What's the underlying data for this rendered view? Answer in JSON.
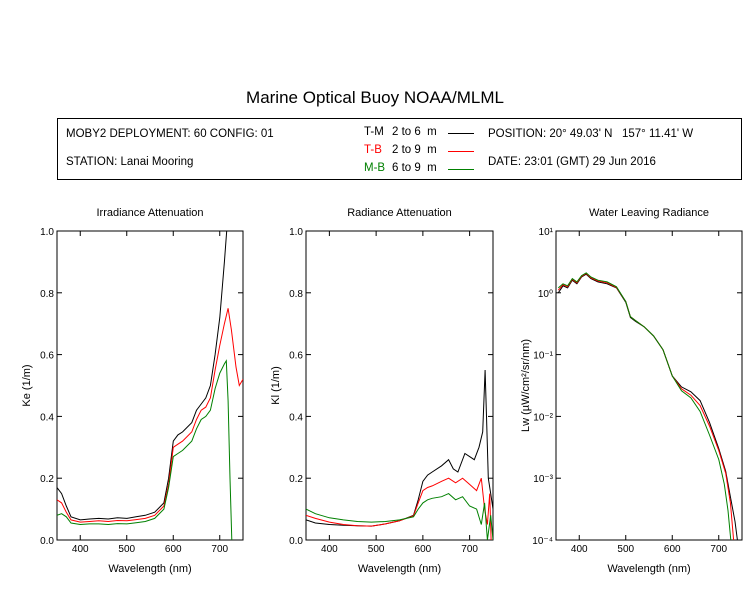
{
  "title": "Marine Optical Buoy NOAA/MLML",
  "info": {
    "deployment": "MOBY2 DEPLOYMENT: 60 CONFIG: 01",
    "station": "STATION: Lanai Mooring",
    "position": "POSITION: 20° 49.03' N   157° 11.41' W",
    "date": "DATE: 23:01 (GMT) 29 Jun 2016",
    "legend": [
      {
        "key": "T-M",
        "range": "2 to 6  m",
        "color": "#000000"
      },
      {
        "key": "T-B",
        "range": "2 to 9  m",
        "color": "#ff0000"
      },
      {
        "key": "M-B",
        "range": "6 to 9  m",
        "color": "#008000"
      }
    ]
  },
  "chart_data": [
    {
      "type": "line",
      "title": "Irradiance Attenuation",
      "xlabel": "Wavelength (nm)",
      "ylabel": "Ke  (1/m)",
      "xlim": [
        350,
        750
      ],
      "ylim": [
        0,
        1.0
      ],
      "xticks": [
        "400",
        "500",
        "600",
        "700"
      ],
      "yticks": [
        "0.0",
        "0.2",
        "0.4",
        "0.6",
        "0.8",
        "1.0"
      ],
      "series": [
        {
          "name": "T-M",
          "color": "#000000",
          "points": [
            [
              350,
              0.17
            ],
            [
              360,
              0.15
            ],
            [
              370,
              0.11
            ],
            [
              380,
              0.075
            ],
            [
              400,
              0.065
            ],
            [
              420,
              0.068
            ],
            [
              440,
              0.07
            ],
            [
              460,
              0.068
            ],
            [
              480,
              0.072
            ],
            [
              500,
              0.07
            ],
            [
              520,
              0.075
            ],
            [
              540,
              0.08
            ],
            [
              560,
              0.09
            ],
            [
              580,
              0.12
            ],
            [
              590,
              0.2
            ],
            [
              600,
              0.32
            ],
            [
              610,
              0.34
            ],
            [
              620,
              0.35
            ],
            [
              640,
              0.38
            ],
            [
              650,
              0.42
            ],
            [
              660,
              0.44
            ],
            [
              670,
              0.46
            ],
            [
              680,
              0.5
            ],
            [
              690,
              0.6
            ],
            [
              700,
              0.72
            ],
            [
              710,
              0.9
            ],
            [
              715,
              1.0
            ]
          ]
        },
        {
          "name": "T-B",
          "color": "#ff0000",
          "points": [
            [
              350,
              0.13
            ],
            [
              360,
              0.12
            ],
            [
              370,
              0.09
            ],
            [
              380,
              0.065
            ],
            [
              400,
              0.058
            ],
            [
              420,
              0.06
            ],
            [
              440,
              0.062
            ],
            [
              460,
              0.06
            ],
            [
              480,
              0.063
            ],
            [
              500,
              0.062
            ],
            [
              520,
              0.066
            ],
            [
              540,
              0.07
            ],
            [
              560,
              0.08
            ],
            [
              580,
              0.11
            ],
            [
              590,
              0.18
            ],
            [
              600,
              0.3
            ],
            [
              610,
              0.31
            ],
            [
              620,
              0.32
            ],
            [
              640,
              0.35
            ],
            [
              650,
              0.39
            ],
            [
              660,
              0.42
            ],
            [
              670,
              0.43
            ],
            [
              680,
              0.46
            ],
            [
              690,
              0.55
            ],
            [
              700,
              0.63
            ],
            [
              710,
              0.7
            ],
            [
              718,
              0.75
            ],
            [
              725,
              0.68
            ],
            [
              735,
              0.56
            ],
            [
              742,
              0.5
            ],
            [
              750,
              0.52
            ]
          ]
        },
        {
          "name": "M-B",
          "color": "#008000",
          "points": [
            [
              350,
              0.08
            ],
            [
              360,
              0.085
            ],
            [
              370,
              0.075
            ],
            [
              380,
              0.055
            ],
            [
              400,
              0.05
            ],
            [
              420,
              0.052
            ],
            [
              440,
              0.052
            ],
            [
              460,
              0.05
            ],
            [
              480,
              0.053
            ],
            [
              500,
              0.052
            ],
            [
              520,
              0.056
            ],
            [
              540,
              0.06
            ],
            [
              560,
              0.07
            ],
            [
              580,
              0.1
            ],
            [
              590,
              0.17
            ],
            [
              600,
              0.27
            ],
            [
              610,
              0.28
            ],
            [
              620,
              0.29
            ],
            [
              640,
              0.32
            ],
            [
              650,
              0.36
            ],
            [
              660,
              0.39
            ],
            [
              670,
              0.4
            ],
            [
              680,
              0.42
            ],
            [
              690,
              0.49
            ],
            [
              700,
              0.54
            ],
            [
              710,
              0.57
            ],
            [
              714,
              0.58
            ],
            [
              718,
              0.45
            ],
            [
              722,
              0.2
            ],
            [
              726,
              0.0
            ]
          ]
        }
      ]
    },
    {
      "type": "line",
      "title": "Radiance Attenuation",
      "xlabel": "Wavelength (nm)",
      "ylabel": "Kl  (1/m)",
      "xlim": [
        350,
        750
      ],
      "ylim": [
        0,
        1.0
      ],
      "xticks": [
        "400",
        "500",
        "600",
        "700"
      ],
      "yticks": [
        "0.0",
        "0.2",
        "0.4",
        "0.6",
        "0.8",
        "1.0"
      ],
      "series": [
        {
          "name": "T-M",
          "color": "#000000",
          "points": [
            [
              350,
              0.065
            ],
            [
              370,
              0.055
            ],
            [
              400,
              0.05
            ],
            [
              430,
              0.048
            ],
            [
              460,
              0.046
            ],
            [
              490,
              0.045
            ],
            [
              520,
              0.052
            ],
            [
              550,
              0.062
            ],
            [
              580,
              0.08
            ],
            [
              590,
              0.13
            ],
            [
              600,
              0.19
            ],
            [
              610,
              0.21
            ],
            [
              620,
              0.22
            ],
            [
              640,
              0.24
            ],
            [
              655,
              0.26
            ],
            [
              665,
              0.23
            ],
            [
              675,
              0.22
            ],
            [
              690,
              0.28
            ],
            [
              700,
              0.27
            ],
            [
              710,
              0.26
            ],
            [
              720,
              0.3
            ],
            [
              728,
              0.35
            ],
            [
              733,
              0.55
            ],
            [
              736,
              0.4
            ],
            [
              740,
              0.2
            ],
            [
              745,
              0.15
            ],
            [
              750,
              0.1
            ]
          ]
        },
        {
          "name": "T-B",
          "color": "#ff0000",
          "points": [
            [
              350,
              0.08
            ],
            [
              370,
              0.07
            ],
            [
              400,
              0.058
            ],
            [
              430,
              0.05
            ],
            [
              460,
              0.046
            ],
            [
              490,
              0.045
            ],
            [
              520,
              0.052
            ],
            [
              550,
              0.062
            ],
            [
              580,
              0.078
            ],
            [
              590,
              0.12
            ],
            [
              600,
              0.16
            ],
            [
              610,
              0.17
            ],
            [
              620,
              0.175
            ],
            [
              640,
              0.19
            ],
            [
              655,
              0.2
            ],
            [
              670,
              0.185
            ],
            [
              685,
              0.2
            ],
            [
              700,
              0.18
            ],
            [
              715,
              0.16
            ],
            [
              725,
              0.2
            ],
            [
              732,
              0.1
            ],
            [
              738,
              0.05
            ],
            [
              743,
              0.15
            ],
            [
              746,
              0.0
            ]
          ]
        },
        {
          "name": "M-B",
          "color": "#008000",
          "points": [
            [
              350,
              0.1
            ],
            [
              370,
              0.085
            ],
            [
              400,
              0.072
            ],
            [
              430,
              0.065
            ],
            [
              460,
              0.06
            ],
            [
              490,
              0.058
            ],
            [
              520,
              0.06
            ],
            [
              550,
              0.065
            ],
            [
              580,
              0.075
            ],
            [
              590,
              0.1
            ],
            [
              600,
              0.12
            ],
            [
              610,
              0.13
            ],
            [
              620,
              0.135
            ],
            [
              640,
              0.14
            ],
            [
              655,
              0.15
            ],
            [
              670,
              0.13
            ],
            [
              685,
              0.14
            ],
            [
              700,
              0.11
            ],
            [
              715,
              0.1
            ],
            [
              725,
              0.05
            ],
            [
              732,
              0.12
            ],
            [
              738,
              0.0
            ],
            [
              745,
              0.08
            ],
            [
              750,
              0.0
            ]
          ]
        }
      ]
    },
    {
      "type": "line",
      "title": "Water Leaving Radiance",
      "xlabel": "Wavelength (nm)",
      "ylabel": "Lw  (µW/cm²/sr/nm)",
      "xlim": [
        350,
        750
      ],
      "ylim": [
        0.0001,
        10
      ],
      "yscale": "log",
      "xticks": [
        "400",
        "500",
        "600",
        "700"
      ],
      "yticks": [
        "10⁻⁴",
        "10⁻³",
        "10⁻²",
        "10⁻¹",
        "10⁰",
        "10¹"
      ],
      "series": [
        {
          "name": "T-M",
          "color": "#000000",
          "points": [
            [
              355,
              1.0
            ],
            [
              365,
              1.3
            ],
            [
              375,
              1.2
            ],
            [
              385,
              1.6
            ],
            [
              395,
              1.4
            ],
            [
              405,
              1.8
            ],
            [
              415,
              2.0
            ],
            [
              425,
              1.7
            ],
            [
              440,
              1.5
            ],
            [
              460,
              1.4
            ],
            [
              480,
              1.2
            ],
            [
              500,
              0.7
            ],
            [
              510,
              0.4
            ],
            [
              520,
              0.35
            ],
            [
              540,
              0.28
            ],
            [
              560,
              0.2
            ],
            [
              580,
              0.12
            ],
            [
              600,
              0.045
            ],
            [
              620,
              0.03
            ],
            [
              640,
              0.025
            ],
            [
              660,
              0.018
            ],
            [
              680,
              0.008
            ],
            [
              700,
              0.003
            ],
            [
              715,
              0.0013
            ],
            [
              725,
              0.0005
            ],
            [
              735,
              0.0002
            ],
            [
              740,
              0.0001
            ]
          ]
        },
        {
          "name": "T-B",
          "color": "#ff0000",
          "points": [
            [
              355,
              1.1
            ],
            [
              365,
              1.35
            ],
            [
              375,
              1.25
            ],
            [
              385,
              1.65
            ],
            [
              395,
              1.45
            ],
            [
              405,
              1.85
            ],
            [
              415,
              2.05
            ],
            [
              425,
              1.75
            ],
            [
              440,
              1.55
            ],
            [
              460,
              1.45
            ],
            [
              480,
              1.22
            ],
            [
              500,
              0.72
            ],
            [
              510,
              0.41
            ],
            [
              520,
              0.36
            ],
            [
              540,
              0.28
            ],
            [
              560,
              0.2
            ],
            [
              580,
              0.12
            ],
            [
              600,
              0.045
            ],
            [
              620,
              0.028
            ],
            [
              640,
              0.022
            ],
            [
              660,
              0.015
            ],
            [
              680,
              0.007
            ],
            [
              700,
              0.0028
            ],
            [
              715,
              0.0012
            ],
            [
              725,
              0.0004
            ],
            [
              732,
              0.0001
            ]
          ]
        },
        {
          "name": "M-B",
          "color": "#008000",
          "points": [
            [
              355,
              1.2
            ],
            [
              365,
              1.4
            ],
            [
              375,
              1.3
            ],
            [
              385,
              1.7
            ],
            [
              395,
              1.5
            ],
            [
              405,
              1.9
            ],
            [
              415,
              2.1
            ],
            [
              425,
              1.8
            ],
            [
              440,
              1.6
            ],
            [
              460,
              1.5
            ],
            [
              480,
              1.25
            ],
            [
              500,
              0.72
            ],
            [
              510,
              0.41
            ],
            [
              520,
              0.36
            ],
            [
              540,
              0.28
            ],
            [
              560,
              0.2
            ],
            [
              580,
              0.12
            ],
            [
              600,
              0.045
            ],
            [
              620,
              0.026
            ],
            [
              640,
              0.02
            ],
            [
              660,
              0.012
            ],
            [
              680,
              0.005
            ],
            [
              700,
              0.002
            ],
            [
              712,
              0.0008
            ],
            [
              720,
              0.0003
            ],
            [
              726,
              0.0001
            ]
          ]
        }
      ]
    }
  ]
}
